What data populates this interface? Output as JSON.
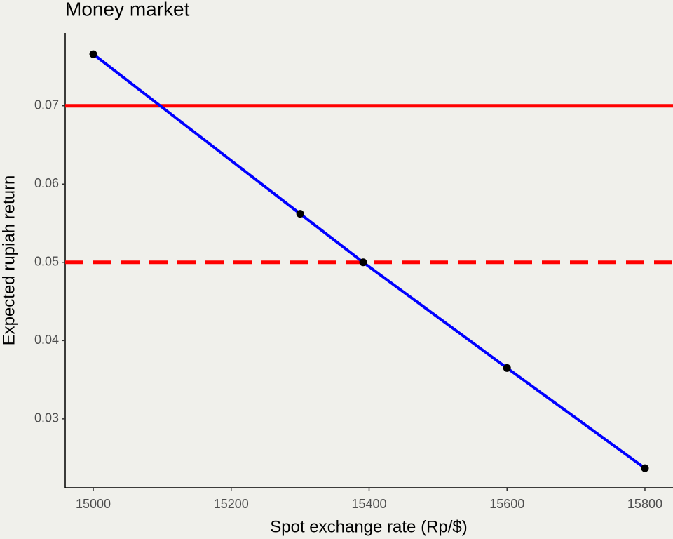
{
  "chart_data": {
    "type": "line",
    "title": "Money market",
    "x_label": "Spot exchange rate (Rp/$)",
    "y_label": "Expected rupiah return",
    "x": [
      15000,
      15300,
      15391.4,
      15600,
      15800
    ],
    "values": [
      0.0766,
      0.0562,
      0.05,
      0.0365,
      0.0237
    ],
    "color": "#0000ff",
    "marker_color": "#000000",
    "hlines": [
      {
        "value": 0.07,
        "style": "solid",
        "color": "#ff0000"
      },
      {
        "value": 0.05,
        "style": "dashed",
        "color": "#ff0000"
      }
    ],
    "xlim": [
      14959.3,
      15840.7
    ],
    "ylim": [
      0.0212,
      0.0793
    ],
    "xticks": [
      15000,
      15200,
      15400,
      15600,
      15800
    ],
    "yticks": [
      0.03,
      0.04,
      0.05,
      0.06,
      0.07
    ],
    "grid": false
  }
}
